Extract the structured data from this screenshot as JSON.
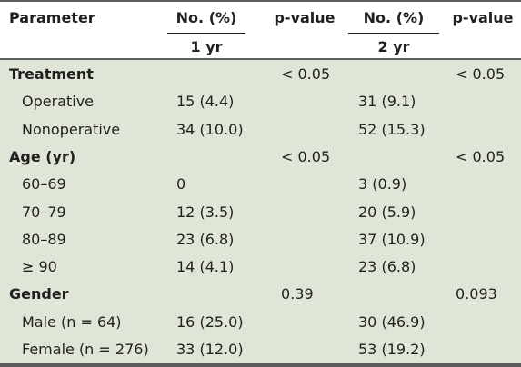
{
  "table": {
    "headers": {
      "parameter": "Parameter",
      "no_pct_1": "No. (%)",
      "pvalue_1": "p-value",
      "no_pct_2": "No. (%)",
      "pvalue_2": "p-value",
      "sub_1yr": "1 yr",
      "sub_2yr": "2 yr"
    },
    "rows": [
      {
        "label": "Treatment",
        "yr1": "",
        "p1": "< 0.05",
        "yr2": "",
        "p2": "< 0.05",
        "section": true
      },
      {
        "label": "Operative",
        "yr1": "15 (4.4)",
        "p1": "",
        "yr2": "31 (9.1)",
        "p2": "",
        "section": false
      },
      {
        "label": "Nonoperative",
        "yr1": "34 (10.0)",
        "p1": "",
        "yr2": "52 (15.3)",
        "p2": "",
        "section": false
      },
      {
        "label": "Age (yr)",
        "yr1": "",
        "p1": "< 0.05",
        "yr2": "",
        "p2": "< 0.05",
        "section": true
      },
      {
        "label": "60–69",
        "yr1": "0",
        "p1": "",
        "yr2": "3 (0.9)",
        "p2": "",
        "section": false
      },
      {
        "label": "70–79",
        "yr1": "12 (3.5)",
        "p1": "",
        "yr2": "20 (5.9)",
        "p2": "",
        "section": false
      },
      {
        "label": "80–89",
        "yr1": "23 (6.8)",
        "p1": "",
        "yr2": "37 (10.9)",
        "p2": "",
        "section": false
      },
      {
        "label": "≥ 90",
        "yr1": "14 (4.1)",
        "p1": "",
        "yr2": "23 (6.8)",
        "p2": "",
        "section": false
      },
      {
        "label": "Gender",
        "yr1": "",
        "p1": "0.39",
        "yr2": "",
        "p2": "0.093",
        "section": true
      },
      {
        "label": "Male (n = 64)",
        "yr1": "16 (25.0)",
        "p1": "",
        "yr2": "30 (46.9)",
        "p2": "",
        "section": false
      },
      {
        "label": "Female (n = 276)",
        "yr1": "33 (12.0)",
        "p1": "",
        "yr2": "53 (19.2)",
        "p2": "",
        "section": false
      }
    ]
  }
}
